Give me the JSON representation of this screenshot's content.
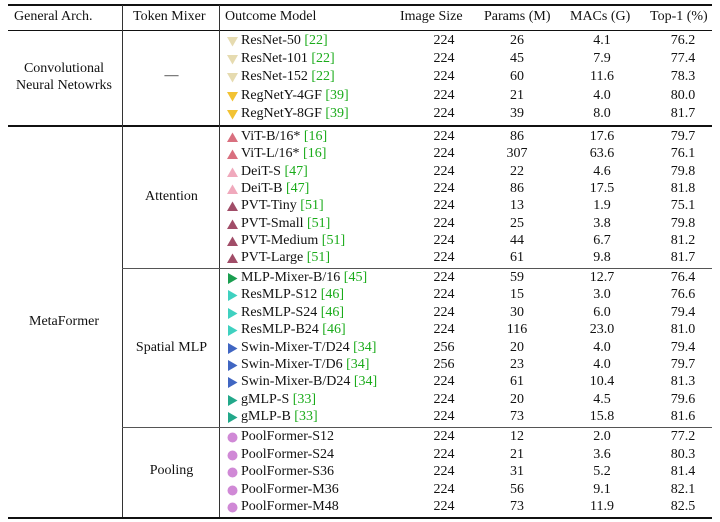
{
  "header": {
    "general_arch": "General Arch.",
    "token_mixer": "Token Mixer",
    "outcome_model": "Outcome Model",
    "image_size": "Image Size",
    "params": "Params (M)",
    "macs": "MACs (G)",
    "top1": "Top-1 (%)"
  },
  "groups": {
    "cnn_arch": "Convolutional\nNeural Netowrks",
    "cnn_mixer": "—",
    "metaformer_arch": "MetaFormer",
    "attention": "Attention",
    "spatial_mlp": "Spatial MLP",
    "pooling": "Pooling"
  },
  "colors": {
    "cnn_light": "#e6dbb0",
    "cnn_dark": "#f2c233",
    "attn_dark": "#a14d68",
    "attn_light": "#f0a9bc",
    "mlp_dark": "#1a9e50",
    "mlp_teal": "#3fd1c0",
    "mlp_blue": "#4066c2",
    "mlp_green": "#22a88a",
    "pool": "#d089d6",
    "ref": "#1aab1a"
  },
  "rows": [
    {
      "name": "ResNet-50",
      "ref": "[22]",
      "img": "224",
      "params": "26",
      "macs": "4.1",
      "top1": "76.2",
      "marker": "tri-down",
      "color": "#e6dbb0"
    },
    {
      "name": "ResNet-101",
      "ref": "[22]",
      "img": "224",
      "params": "45",
      "macs": "7.9",
      "top1": "77.4",
      "marker": "tri-down",
      "color": "#e6dbb0"
    },
    {
      "name": "ResNet-152",
      "ref": "[22]",
      "img": "224",
      "params": "60",
      "macs": "11.6",
      "top1": "78.3",
      "marker": "tri-down",
      "color": "#e6dbb0"
    },
    {
      "name": "RegNetY-4GF",
      "ref": "[39]",
      "img": "224",
      "params": "21",
      "macs": "4.0",
      "top1": "80.0",
      "marker": "tri-down",
      "color": "#f2c233"
    },
    {
      "name": "RegNetY-8GF",
      "ref": "[39]",
      "img": "224",
      "params": "39",
      "macs": "8.0",
      "top1": "81.7",
      "marker": "tri-down",
      "color": "#f2c233"
    },
    {
      "name": "ViT-B/16*",
      "ref": "[16]",
      "img": "224",
      "params": "86",
      "macs": "17.6",
      "top1": "79.7",
      "marker": "tri-up",
      "color": "#d9707f"
    },
    {
      "name": "ViT-L/16*",
      "ref": "[16]",
      "img": "224",
      "params": "307",
      "macs": "63.6",
      "top1": "76.1",
      "marker": "tri-up",
      "color": "#d9707f"
    },
    {
      "name": "DeiT-S",
      "ref": "[47]",
      "img": "224",
      "params": "22",
      "macs": "4.6",
      "top1": "79.8",
      "marker": "tri-up",
      "color": "#f0a9bc"
    },
    {
      "name": "DeiT-B",
      "ref": "[47]",
      "img": "224",
      "params": "86",
      "macs": "17.5",
      "top1": "81.8",
      "marker": "tri-up",
      "color": "#f0a9bc"
    },
    {
      "name": "PVT-Tiny",
      "ref": "[51]",
      "img": "224",
      "params": "13",
      "macs": "1.9",
      "top1": "75.1",
      "marker": "tri-up",
      "color": "#a14d68"
    },
    {
      "name": "PVT-Small",
      "ref": "[51]",
      "img": "224",
      "params": "25",
      "macs": "3.8",
      "top1": "79.8",
      "marker": "tri-up",
      "color": "#a14d68"
    },
    {
      "name": "PVT-Medium",
      "ref": "[51]",
      "img": "224",
      "params": "44",
      "macs": "6.7",
      "top1": "81.2",
      "marker": "tri-up",
      "color": "#a14d68"
    },
    {
      "name": "PVT-Large",
      "ref": "[51]",
      "img": "224",
      "params": "61",
      "macs": "9.8",
      "top1": "81.7",
      "marker": "tri-up",
      "color": "#a14d68"
    },
    {
      "name": "MLP-Mixer-B/16",
      "ref": "[45]",
      "img": "224",
      "params": "59",
      "macs": "12.7",
      "top1": "76.4",
      "marker": "tri-right",
      "color": "#1a9e50"
    },
    {
      "name": "ResMLP-S12",
      "ref": "[46]",
      "img": "224",
      "params": "15",
      "macs": "3.0",
      "top1": "76.6",
      "marker": "tri-right",
      "color": "#3fd1c0"
    },
    {
      "name": "ResMLP-S24",
      "ref": "[46]",
      "img": "224",
      "params": "30",
      "macs": "6.0",
      "top1": "79.4",
      "marker": "tri-right",
      "color": "#3fd1c0"
    },
    {
      "name": "ResMLP-B24",
      "ref": "[46]",
      "img": "224",
      "params": "116",
      "macs": "23.0",
      "top1": "81.0",
      "marker": "tri-right",
      "color": "#3fd1c0"
    },
    {
      "name": "Swin-Mixer-T/D24",
      "ref": "[34]",
      "img": "256",
      "params": "20",
      "macs": "4.0",
      "top1": "79.4",
      "marker": "tri-right",
      "color": "#4066c2"
    },
    {
      "name": "Swin-Mixer-T/D6",
      "ref": "[34]",
      "img": "256",
      "params": "23",
      "macs": "4.0",
      "top1": "79.7",
      "marker": "tri-right",
      "color": "#4066c2"
    },
    {
      "name": "Swin-Mixer-B/D24",
      "ref": "[34]",
      "img": "224",
      "params": "61",
      "macs": "10.4",
      "top1": "81.3",
      "marker": "tri-right",
      "color": "#4066c2"
    },
    {
      "name": "gMLP-S",
      "ref": "[33]",
      "img": "224",
      "params": "20",
      "macs": "4.5",
      "top1": "79.6",
      "marker": "tri-right",
      "color": "#22a88a"
    },
    {
      "name": "gMLP-B",
      "ref": "[33]",
      "img": "224",
      "params": "73",
      "macs": "15.8",
      "top1": "81.6",
      "marker": "tri-right",
      "color": "#22a88a"
    },
    {
      "name": "PoolFormer-S12",
      "ref": "",
      "img": "224",
      "params": "12",
      "macs": "2.0",
      "top1": "77.2",
      "marker": "circle",
      "color": "#d089d6"
    },
    {
      "name": "PoolFormer-S24",
      "ref": "",
      "img": "224",
      "params": "21",
      "macs": "3.6",
      "top1": "80.3",
      "marker": "circle",
      "color": "#d089d6"
    },
    {
      "name": "PoolFormer-S36",
      "ref": "",
      "img": "224",
      "params": "31",
      "macs": "5.2",
      "top1": "81.4",
      "marker": "circle",
      "color": "#d089d6"
    },
    {
      "name": "PoolFormer-M36",
      "ref": "",
      "img": "224",
      "params": "56",
      "macs": "9.1",
      "top1": "82.1",
      "marker": "circle",
      "color": "#d089d6"
    },
    {
      "name": "PoolFormer-M48",
      "ref": "",
      "img": "224",
      "params": "73",
      "macs": "11.9",
      "top1": "82.5",
      "marker": "circle",
      "color": "#d089d6"
    }
  ]
}
